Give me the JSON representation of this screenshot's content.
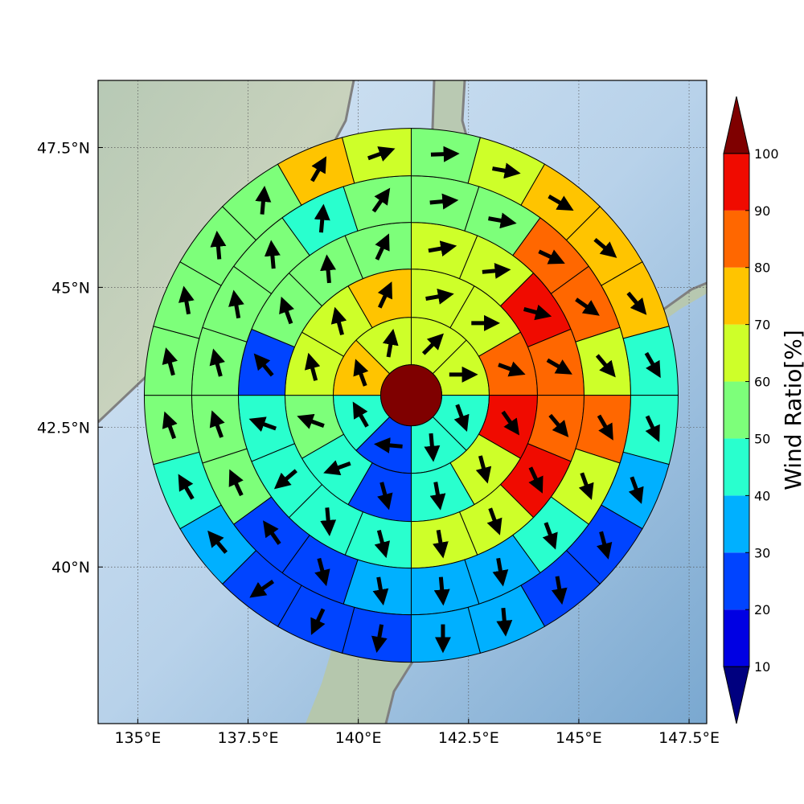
{
  "chart_data": {
    "type": "heatmap",
    "subtype": "polar sector wind map on geographic basemap",
    "title": "",
    "xlabel": "",
    "ylabel": "",
    "xlim": [
      134.1,
      147.9
    ],
    "ylim": [
      37.2,
      48.7
    ],
    "x_ticks": [
      135,
      137.5,
      140,
      142.5,
      145,
      147.5
    ],
    "x_tick_labels": [
      "135°E",
      "137.5°E",
      "140°E",
      "142.5°E",
      "145°E",
      "147.5°E"
    ],
    "y_ticks": [
      40,
      42.5,
      45,
      47.5
    ],
    "y_tick_labels": [
      "40°N",
      "42.5°N",
      "45°N",
      "47.5°N"
    ],
    "grid": true,
    "center": {
      "lon": 141.2,
      "lat": 43.07
    },
    "center_ratio": 100,
    "rings": [
      {
        "sectors": 8,
        "ratios": [
          65,
          65,
          45,
          45,
          25,
          45,
          75,
          65
        ],
        "wind_dir_deg": [
          45,
          90,
          160,
          175,
          275,
          330,
          340,
          10
        ]
      },
      {
        "sectors": 12,
        "ratios": [
          65,
          65,
          85,
          95,
          65,
          45,
          25,
          45,
          55,
          65,
          65,
          75
        ],
        "wind_dir_deg": [
          80,
          90,
          110,
          145,
          165,
          170,
          165,
          250,
          290,
          345,
          345,
          25
        ]
      },
      {
        "sectors": 16,
        "ratios": [
          65,
          65,
          95,
          85,
          85,
          95,
          65,
          65,
          45,
          45,
          45,
          45,
          25,
          55,
          55,
          55
        ],
        "wind_dir_deg": [
          80,
          85,
          105,
          120,
          140,
          155,
          160,
          170,
          165,
          175,
          230,
          290,
          320,
          340,
          355,
          25
        ]
      },
      {
        "sectors": 20,
        "ratios": [
          55,
          55,
          85,
          85,
          65,
          85,
          65,
          45,
          35,
          35,
          35,
          25,
          25,
          55,
          55,
          55,
          55,
          55,
          45,
          55
        ],
        "wind_dir_deg": [
          85,
          100,
          115,
          125,
          140,
          150,
          160,
          160,
          170,
          175,
          170,
          165,
          325,
          335,
          340,
          345,
          350,
          355,
          5,
          35
        ]
      },
      {
        "sectors": 24,
        "ratios": [
          55,
          65,
          75,
          75,
          75,
          45,
          45,
          35,
          25,
          25,
          35,
          35,
          25,
          25,
          25,
          35,
          45,
          55,
          55,
          55,
          55,
          55,
          75,
          65
        ],
        "wind_dir_deg": [
          88,
          100,
          120,
          130,
          140,
          150,
          155,
          160,
          165,
          170,
          175,
          180,
          190,
          205,
          235,
          320,
          330,
          340,
          345,
          350,
          355,
          5,
          30,
          70
        ]
      }
    ],
    "colorbar": {
      "title": "Wind Ratio[%]",
      "boundaries": [
        10,
        20,
        30,
        40,
        50,
        60,
        70,
        80,
        90,
        100
      ],
      "tick_labels": [
        "10",
        "20",
        "30",
        "40",
        "50",
        "60",
        "70",
        "80",
        "90",
        "100"
      ],
      "range": [
        0,
        110
      ],
      "extend": "both",
      "colors": [
        "#00007f",
        "#0000e3",
        "#0044ff",
        "#00b0ff",
        "#29ffce",
        "#7dff7a",
        "#ceff29",
        "#ffc400",
        "#ff6700",
        "#f00b00",
        "#7f0000"
      ]
    }
  }
}
